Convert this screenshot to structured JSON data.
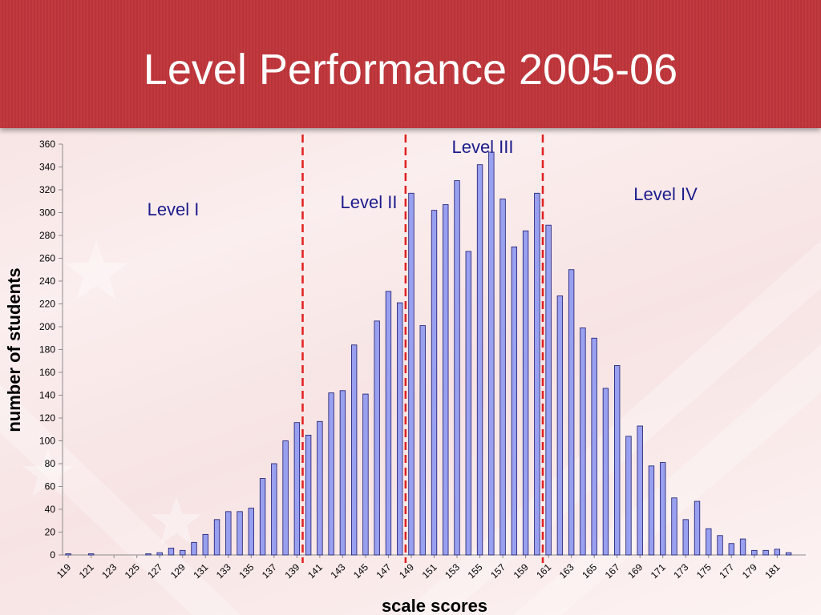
{
  "slide": {
    "title": "Level Performance 2005-06"
  },
  "colors": {
    "header": "#c0393d",
    "bar_fill": "#9aa0f0",
    "bar_stroke": "#1a1a6e",
    "cut_line": "#e02020",
    "level_label": "#1c1c8c"
  },
  "chart_data": {
    "type": "bar",
    "title": "",
    "xlabel": "scale scores",
    "ylabel": "number of students",
    "ylim": [
      0,
      360
    ],
    "yticks": [
      0,
      20,
      40,
      60,
      80,
      100,
      120,
      140,
      160,
      180,
      200,
      220,
      240,
      260,
      280,
      300,
      320,
      340,
      360
    ],
    "grid": false,
    "categories": [
      119,
      120,
      121,
      122,
      123,
      124,
      125,
      126,
      127,
      128,
      129,
      130,
      131,
      132,
      133,
      134,
      135,
      136,
      137,
      138,
      139,
      140,
      141,
      142,
      143,
      144,
      145,
      146,
      147,
      148,
      149,
      150,
      151,
      152,
      153,
      154,
      155,
      156,
      157,
      158,
      159,
      160,
      161,
      162,
      163,
      164,
      165,
      166,
      167,
      168,
      169,
      170,
      171,
      172,
      173,
      174,
      175,
      176,
      177,
      178,
      179,
      180,
      181,
      182,
      183
    ],
    "tick_labels": [
      "119",
      "121",
      "123",
      "125",
      "127",
      "129",
      "131",
      "133",
      "135",
      "137",
      "139",
      "141",
      "143",
      "145",
      "147",
      "149",
      "151",
      "153",
      "155",
      "157",
      "159",
      "161",
      "163",
      "165",
      "167",
      "169",
      "171",
      "173",
      "175",
      "177",
      "179",
      "181"
    ],
    "values": [
      1,
      0,
      1,
      0,
      0,
      0,
      0,
      1,
      2,
      6,
      4,
      11,
      18,
      31,
      38,
      38,
      41,
      67,
      80,
      100,
      116,
      105,
      117,
      142,
      144,
      184,
      141,
      205,
      231,
      221,
      317,
      201,
      302,
      307,
      328,
      266,
      342,
      353,
      312,
      270,
      284,
      317,
      289,
      227,
      250,
      199,
      190,
      146,
      166,
      104,
      113,
      78,
      81,
      50,
      31,
      47,
      23,
      17,
      10,
      14,
      4,
      4,
      5,
      2,
      0
    ],
    "cut_scores": [
      {
        "between": [
          139,
          140
        ]
      },
      {
        "between": [
          148,
          149
        ]
      },
      {
        "between": [
          160,
          161
        ]
      }
    ],
    "levels": [
      {
        "label": "Level I"
      },
      {
        "label": "Level II"
      },
      {
        "label": "Level III"
      },
      {
        "label": "Level IV"
      }
    ]
  }
}
